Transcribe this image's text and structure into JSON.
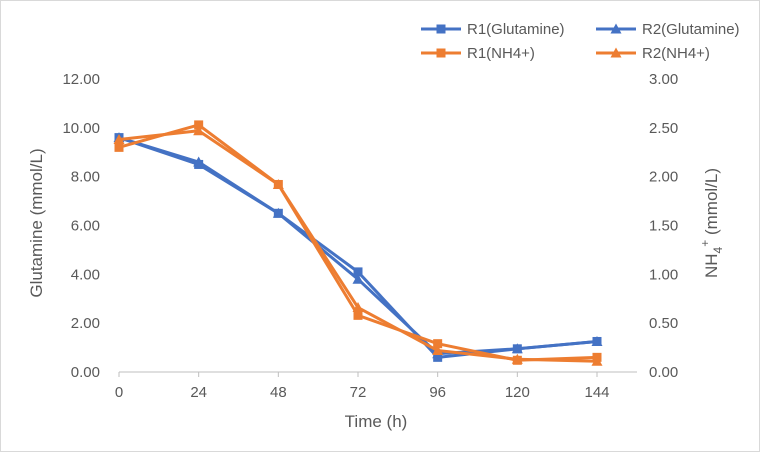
{
  "chart_data": {
    "type": "line",
    "title": "",
    "xlabel": "Time (h)",
    "ylabel_left": "Glutamine (mmol/L)",
    "ylabel_right": "NH4+ (mmol/L)",
    "x": [
      0,
      24,
      48,
      72,
      96,
      120,
      144
    ],
    "x_ticks": [
      "0",
      "24",
      "48",
      "72",
      "96",
      "120",
      "144"
    ],
    "y_left_ticks": [
      "0.00",
      "2.00",
      "4.00",
      "6.00",
      "8.00",
      "10.00",
      "12.00"
    ],
    "y_right_ticks": [
      "0.00",
      "0.50",
      "1.00",
      "1.50",
      "2.00",
      "2.50",
      "3.00"
    ],
    "y_left_lim": [
      0,
      12
    ],
    "y_right_lim": [
      0,
      3
    ],
    "grid": false,
    "legend_position": "top-right",
    "series": [
      {
        "name": "R1(Glutamine)",
        "axis": "left",
        "marker": "square",
        "color": "#4472C4",
        "values": [
          9.6,
          8.5,
          6.5,
          4.1,
          0.6,
          0.95,
          1.25
        ]
      },
      {
        "name": "R2(Glutamine)",
        "axis": "left",
        "marker": "triangle",
        "color": "#4472C4",
        "values": [
          9.6,
          8.6,
          6.5,
          3.8,
          0.75,
          0.95,
          1.25
        ]
      },
      {
        "name": "R1(NH4+)",
        "axis": "right",
        "marker": "square",
        "color": "#ED7D31",
        "values": [
          2.3,
          2.53,
          1.92,
          0.58,
          0.29,
          0.12,
          0.15
        ]
      },
      {
        "name": "R2(NH4+)",
        "axis": "right",
        "marker": "triangle",
        "color": "#ED7D31",
        "values": [
          2.38,
          2.47,
          1.92,
          0.66,
          0.22,
          0.13,
          0.11
        ]
      }
    ]
  }
}
